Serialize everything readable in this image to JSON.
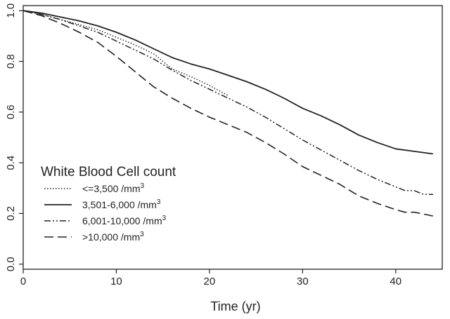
{
  "chart_data": {
    "type": "line",
    "title": "",
    "xlabel": "Time (yr)",
    "ylabel": "",
    "xlim": [
      0,
      45
    ],
    "ylim": [
      -0.02,
      1.02
    ],
    "x_ticks": [
      0,
      10,
      20,
      30,
      40
    ],
    "y_ticks": [
      0.0,
      0.2,
      0.4,
      0.6,
      0.8,
      1.0
    ],
    "x_tick_labels": [
      "0",
      "10",
      "20",
      "30",
      "40"
    ],
    "y_tick_labels": [
      "0.0",
      "0.2",
      "0.4",
      "0.6",
      "0.8",
      "1.0"
    ],
    "grid": false,
    "legend": {
      "title": "White Blood Cell count",
      "placement": "bottom-left",
      "entries": [
        {
          "label": "<=3,500 /mm",
          "sup": "3"
        },
        {
          "label": "3,501-6,000 /mm",
          "sup": "3"
        },
        {
          "label": "6,001-10,000 /mm",
          "sup": "3"
        },
        {
          "label": ">10,000 /mm",
          "sup": "3"
        }
      ]
    },
    "series": [
      {
        "name": "<=3,500 /mm3",
        "style": "dotted",
        "x": [
          0,
          2,
          4,
          6,
          8,
          10,
          12,
          14,
          15,
          16,
          18,
          20,
          22
        ],
        "y": [
          1.0,
          0.985,
          0.965,
          0.945,
          0.925,
          0.895,
          0.865,
          0.83,
          0.8,
          0.77,
          0.74,
          0.705,
          0.665
        ]
      },
      {
        "name": "3,501-6,000 /mm3",
        "style": "solid",
        "x": [
          0,
          2,
          4,
          6,
          8,
          10,
          12,
          14,
          16,
          18,
          20,
          22,
          24,
          26,
          28,
          30,
          32,
          34,
          36,
          38,
          40,
          42,
          44
        ],
        "y": [
          1.0,
          0.99,
          0.975,
          0.96,
          0.94,
          0.915,
          0.885,
          0.85,
          0.815,
          0.79,
          0.77,
          0.745,
          0.72,
          0.69,
          0.655,
          0.615,
          0.585,
          0.55,
          0.51,
          0.48,
          0.455,
          0.445,
          0.435
        ]
      },
      {
        "name": "6,001-10,000 /mm3",
        "style": "dash-dot",
        "x": [
          0,
          2,
          4,
          6,
          8,
          10,
          12,
          14,
          16,
          18,
          20,
          22,
          24,
          26,
          28,
          30,
          32,
          34,
          36,
          38,
          40,
          41,
          42,
          43,
          44
        ],
        "y": [
          1.0,
          0.985,
          0.965,
          0.94,
          0.915,
          0.88,
          0.845,
          0.81,
          0.765,
          0.725,
          0.69,
          0.655,
          0.62,
          0.58,
          0.535,
          0.49,
          0.45,
          0.41,
          0.37,
          0.335,
          0.305,
          0.29,
          0.29,
          0.275,
          0.275
        ]
      },
      {
        "name": ">10,000 /mm3",
        "style": "dashed",
        "x": [
          0,
          2,
          4,
          6,
          8,
          10,
          12,
          14,
          16,
          18,
          20,
          22,
          24,
          26,
          28,
          30,
          32,
          34,
          36,
          38,
          40,
          41,
          42,
          44
        ],
        "y": [
          1.0,
          0.98,
          0.95,
          0.915,
          0.875,
          0.82,
          0.76,
          0.7,
          0.655,
          0.615,
          0.58,
          0.55,
          0.52,
          0.48,
          0.435,
          0.385,
          0.35,
          0.315,
          0.27,
          0.24,
          0.215,
          0.205,
          0.205,
          0.19
        ]
      }
    ]
  }
}
